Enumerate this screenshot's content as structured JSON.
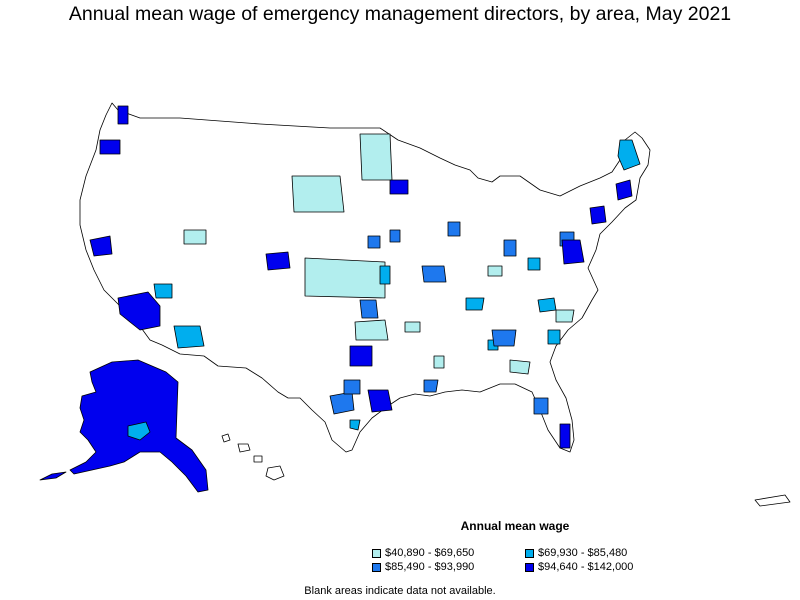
{
  "title": "Annual mean wage of emergency management directors, by area, May 2021",
  "legend": {
    "title": "Annual mean wage",
    "items": [
      {
        "label": "$40,890 - $69,650",
        "color": "#b2eeee"
      },
      {
        "label": "$69,930 - $85,480",
        "color": "#00aeee"
      },
      {
        "label": "$85,490 - $93,990",
        "color": "#1e78ee"
      },
      {
        "label": "$94,640 - $142,000",
        "color": "#0000ee"
      }
    ]
  },
  "note": "Blank areas indicate data not available.",
  "map_regions": {
    "alaska": "tier4",
    "arizona_phoenix": "tier4",
    "arizona_tucson": "tier2",
    "denver": "tier4",
    "houston": "tier4",
    "dallas": "tier4",
    "kansas_region": "tier1",
    "south_dakota_region": "tier1",
    "minnesota_north": "tier1",
    "minneapolis": "tier4",
    "washington_dc_area": "tier4",
    "south_florida": "tier4",
    "san_francisco_bay": "tier4",
    "portland": "tier4",
    "seattle": "tier4",
    "maine": "tier2",
    "boston": "tier4"
  }
}
